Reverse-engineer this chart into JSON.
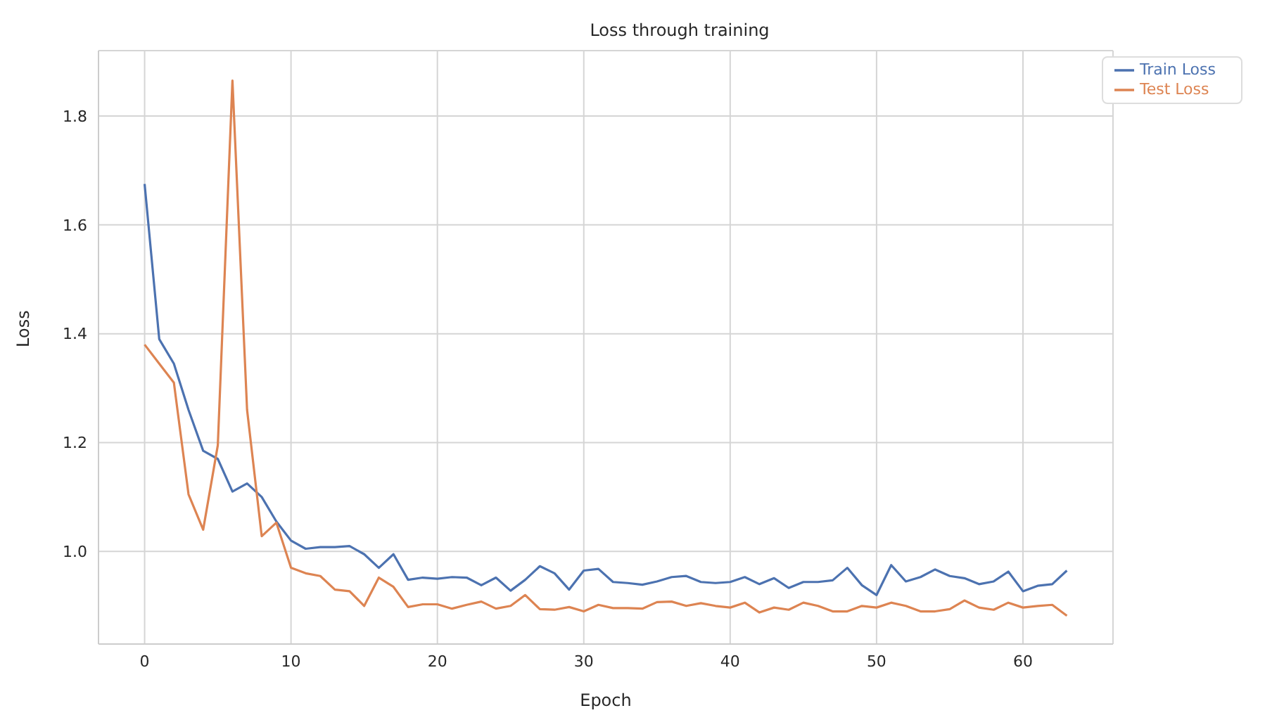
{
  "chart_data": {
    "type": "line",
    "title": "Loss through training",
    "xlabel": "Epoch",
    "ylabel": "Loss",
    "x": [
      0,
      1,
      2,
      3,
      4,
      5,
      6,
      7,
      8,
      9,
      10,
      11,
      12,
      13,
      14,
      15,
      16,
      17,
      18,
      19,
      20,
      21,
      22,
      23,
      24,
      25,
      26,
      27,
      28,
      29,
      30,
      31,
      32,
      33,
      34,
      35,
      36,
      37,
      38,
      39,
      40,
      41,
      42,
      43,
      44,
      45,
      46,
      47,
      48,
      49,
      50,
      51,
      52,
      53,
      54,
      55,
      56,
      57,
      58,
      59,
      60,
      61,
      62,
      63
    ],
    "series": [
      {
        "name": "Train Loss",
        "color": "#4c72b0",
        "values": [
          1.675,
          1.39,
          1.345,
          1.26,
          1.185,
          1.17,
          1.11,
          1.125,
          1.1,
          1.055,
          1.02,
          1.005,
          1.008,
          1.008,
          1.01,
          0.995,
          0.97,
          0.995,
          0.948,
          0.952,
          0.95,
          0.953,
          0.952,
          0.938,
          0.952,
          0.928,
          0.948,
          0.973,
          0.96,
          0.93,
          0.965,
          0.968,
          0.944,
          0.942,
          0.939,
          0.945,
          0.953,
          0.955,
          0.944,
          0.942,
          0.944,
          0.953,
          0.94,
          0.951,
          0.933,
          0.944,
          0.944,
          0.947,
          0.97,
          0.938,
          0.92,
          0.975,
          0.945,
          0.953,
          0.967,
          0.955,
          0.951,
          0.94,
          0.945,
          0.963,
          0.927,
          0.937,
          0.94,
          0.965
        ]
      },
      {
        "name": "Test Loss",
        "color": "#dd8452",
        "values": [
          1.38,
          1.345,
          1.31,
          1.105,
          1.04,
          1.195,
          1.865,
          1.26,
          1.028,
          1.053,
          0.97,
          0.96,
          0.955,
          0.93,
          0.927,
          0.9,
          0.952,
          0.935,
          0.898,
          0.903,
          0.903,
          0.895,
          0.902,
          0.908,
          0.895,
          0.9,
          0.92,
          0.894,
          0.893,
          0.898,
          0.89,
          0.902,
          0.896,
          0.896,
          0.895,
          0.907,
          0.908,
          0.9,
          0.905,
          0.9,
          0.897,
          0.906,
          0.888,
          0.897,
          0.893,
          0.906,
          0.9,
          0.89,
          0.89,
          0.9,
          0.897,
          0.906,
          0.9,
          0.89,
          0.89,
          0.894,
          0.91,
          0.897,
          0.893,
          0.906,
          0.897,
          0.9,
          0.902,
          0.882
        ]
      }
    ],
    "xlim": [
      -3.15,
      66.15
    ],
    "xticks": [
      0,
      10,
      20,
      30,
      40,
      50,
      60
    ],
    "ylim": [
      0.83,
      1.92
    ],
    "yticks": [
      {
        "value": 1,
        "label": "1.0"
      },
      {
        "value": 1.2,
        "label": "1.2"
      },
      {
        "value": 1.4,
        "label": "1.4"
      },
      {
        "value": 1.6,
        "label": "1.6"
      },
      {
        "value": 1.8,
        "label": "1.8"
      }
    ],
    "grid": true,
    "legend": "top right",
    "marker": "none",
    "line_style": "solid"
  }
}
